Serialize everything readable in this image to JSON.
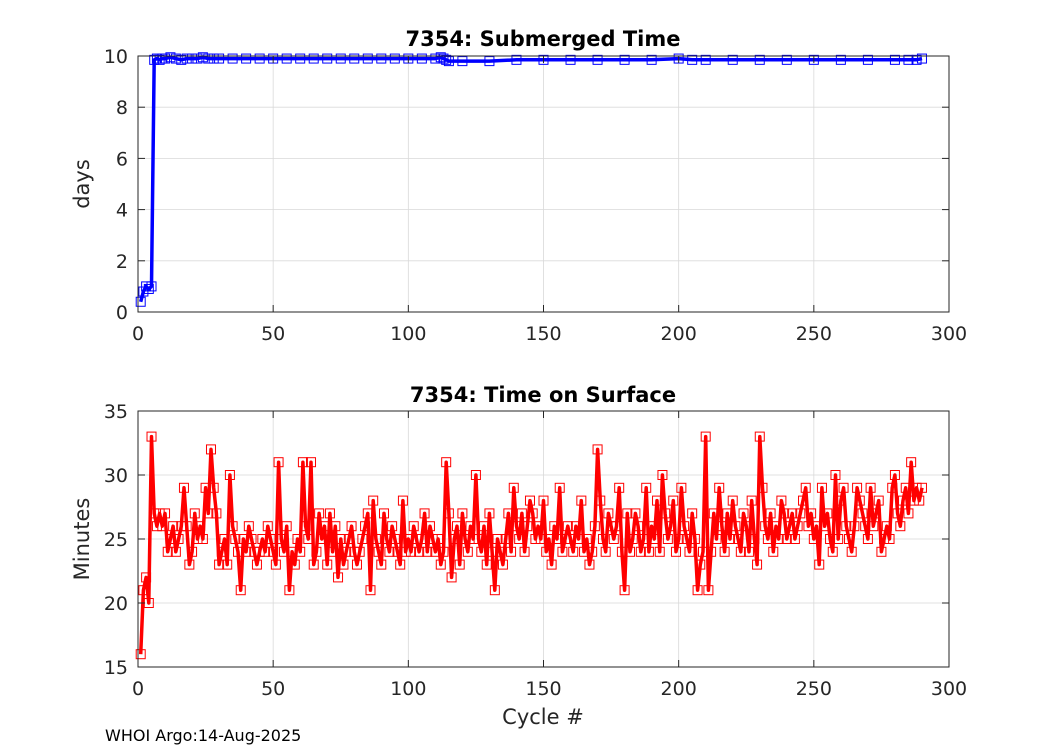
{
  "footer": "WHOI Argo:14-Aug-2025",
  "chart_data": [
    {
      "type": "line",
      "title": "7354: Submerged Time",
      "xlabel": "",
      "ylabel": "days",
      "xlim": [
        0,
        300
      ],
      "ylim": [
        0,
        10
      ],
      "xticks": [
        0,
        50,
        100,
        150,
        200,
        250,
        300
      ],
      "yticks": [
        0,
        2,
        4,
        6,
        8,
        10
      ],
      "grid": true,
      "marker": "square",
      "color": "#0000ff",
      "series": [
        {
          "name": "Submerged Time",
          "x": [
            1,
            2,
            3,
            4,
            5,
            6,
            7,
            8,
            9,
            10,
            12,
            14,
            16,
            18,
            20,
            22,
            24,
            26,
            28,
            30,
            35,
            40,
            45,
            50,
            55,
            60,
            65,
            70,
            75,
            80,
            85,
            90,
            95,
            100,
            105,
            110,
            112,
            113,
            114,
            115,
            120,
            130,
            140,
            150,
            160,
            170,
            180,
            190,
            200,
            205,
            210,
            220,
            230,
            240,
            250,
            260,
            270,
            280,
            285,
            288,
            290
          ],
          "values": [
            0.4,
            0.8,
            1.0,
            0.9,
            1.0,
            9.85,
            9.9,
            9.85,
            9.9,
            9.9,
            9.95,
            9.9,
            9.85,
            9.9,
            9.9,
            9.9,
            9.95,
            9.9,
            9.9,
            9.9,
            9.9,
            9.9,
            9.9,
            9.9,
            9.9,
            9.9,
            9.9,
            9.9,
            9.9,
            9.9,
            9.9,
            9.9,
            9.9,
            9.9,
            9.9,
            9.9,
            9.95,
            9.9,
            9.85,
            9.8,
            9.8,
            9.8,
            9.85,
            9.85,
            9.85,
            9.85,
            9.85,
            9.85,
            9.9,
            9.85,
            9.85,
            9.85,
            9.85,
            9.85,
            9.85,
            9.85,
            9.85,
            9.85,
            9.85,
            9.85,
            9.9
          ]
        }
      ]
    },
    {
      "type": "line",
      "title": "7354: Time on Surface",
      "xlabel": "Cycle #",
      "ylabel": "Minutes",
      "xlim": [
        0,
        300
      ],
      "ylim": [
        15,
        35
      ],
      "xticks": [
        0,
        50,
        100,
        150,
        200,
        250,
        300
      ],
      "yticks": [
        15,
        20,
        25,
        30,
        35
      ],
      "grid": true,
      "marker": "square",
      "color": "#ff0000",
      "series": [
        {
          "name": "Time on Surface",
          "x": [
            1,
            2,
            3,
            4,
            5,
            6,
            7,
            8,
            9,
            10,
            11,
            12,
            13,
            14,
            15,
            16,
            17,
            18,
            19,
            20,
            21,
            22,
            23,
            24,
            25,
            26,
            27,
            28,
            29,
            30,
            31,
            32,
            33,
            34,
            35,
            36,
            37,
            38,
            39,
            40,
            41,
            42,
            43,
            44,
            45,
            46,
            47,
            48,
            49,
            50,
            51,
            52,
            53,
            54,
            55,
            56,
            57,
            58,
            59,
            60,
            61,
            62,
            63,
            64,
            65,
            66,
            67,
            68,
            69,
            70,
            71,
            72,
            73,
            74,
            75,
            76,
            77,
            78,
            79,
            80,
            81,
            82,
            83,
            84,
            85,
            86,
            87,
            88,
            89,
            90,
            91,
            92,
            93,
            94,
            95,
            96,
            97,
            98,
            99,
            100,
            101,
            102,
            103,
            104,
            105,
            106,
            107,
            108,
            109,
            110,
            111,
            112,
            113,
            114,
            115,
            116,
            117,
            118,
            119,
            120,
            121,
            122,
            123,
            124,
            125,
            126,
            127,
            128,
            129,
            130,
            131,
            132,
            133,
            134,
            135,
            136,
            137,
            138,
            139,
            140,
            141,
            142,
            143,
            144,
            145,
            146,
            147,
            148,
            149,
            150,
            151,
            152,
            153,
            154,
            155,
            156,
            157,
            158,
            159,
            160,
            161,
            162,
            163,
            164,
            165,
            166,
            167,
            168,
            169,
            170,
            171,
            172,
            173,
            174,
            175,
            176,
            177,
            178,
            179,
            180,
            181,
            182,
            183,
            184,
            185,
            186,
            187,
            188,
            189,
            190,
            191,
            192,
            193,
            194,
            195,
            196,
            197,
            198,
            199,
            200,
            201,
            202,
            203,
            204,
            205,
            206,
            207,
            208,
            209,
            210,
            211,
            212,
            213,
            214,
            215,
            216,
            217,
            218,
            219,
            220,
            221,
            222,
            223,
            224,
            225,
            226,
            227,
            228,
            229,
            230,
            231,
            232,
            233,
            234,
            235,
            236,
            237,
            238,
            239,
            240,
            241,
            242,
            243,
            244,
            245,
            246,
            247,
            248,
            249,
            250,
            251,
            252,
            253,
            254,
            255,
            256,
            257,
            258,
            259,
            260,
            261,
            262,
            263,
            264,
            265,
            266,
            267,
            268,
            269,
            270,
            271,
            272,
            273,
            274,
            275,
            276,
            277,
            278,
            279,
            280,
            281,
            282,
            283,
            284,
            285,
            286,
            287,
            288,
            289,
            290
          ],
          "values": [
            16,
            21,
            22,
            20,
            33,
            27,
            26,
            27,
            26,
            27,
            24,
            25,
            26,
            24,
            25,
            26,
            29,
            26,
            23,
            24,
            27,
            25,
            26,
            25,
            29,
            27,
            32,
            29,
            27,
            23,
            24,
            25,
            23,
            30,
            26,
            25,
            24,
            21,
            25,
            24,
            26,
            25,
            24,
            23,
            24,
            25,
            24,
            26,
            25,
            24,
            23,
            31,
            25,
            24,
            26,
            21,
            24,
            23,
            25,
            24,
            31,
            26,
            25,
            31,
            23,
            24,
            27,
            25,
            26,
            23,
            27,
            24,
            26,
            22,
            25,
            23,
            24,
            25,
            26,
            24,
            23,
            24,
            25,
            26,
            27,
            21,
            28,
            25,
            24,
            23,
            27,
            25,
            24,
            26,
            25,
            24,
            23,
            28,
            24,
            25,
            24,
            26,
            25,
            24,
            25,
            27,
            24,
            26,
            25,
            24,
            25,
            23,
            24,
            31,
            27,
            22,
            25,
            26,
            23,
            27,
            25,
            24,
            26,
            25,
            30,
            25,
            24,
            26,
            23,
            27,
            24,
            21,
            25,
            24,
            23,
            25,
            27,
            24,
            29,
            26,
            25,
            27,
            24,
            26,
            28,
            27,
            25,
            26,
            25,
            28,
            24,
            25,
            23,
            26,
            25,
            29,
            24,
            25,
            26,
            25,
            24,
            26,
            25,
            28,
            24,
            25,
            23,
            24,
            26,
            32,
            28,
            25,
            24,
            27,
            26,
            25,
            26,
            29,
            24,
            21,
            27,
            24,
            25,
            27,
            26,
            24,
            25,
            29,
            24,
            26,
            25,
            28,
            24,
            30,
            27,
            25,
            26,
            28,
            24,
            25,
            29,
            26,
            25,
            24,
            27,
            25,
            21,
            23,
            24,
            33,
            21,
            24,
            27,
            25,
            29,
            26,
            24,
            27,
            25,
            28,
            26,
            25,
            24,
            27,
            26,
            24,
            28,
            25,
            23,
            33,
            29,
            26,
            25,
            27,
            24,
            26,
            25,
            28,
            27,
            25,
            26,
            27,
            25,
            26,
            27,
            28,
            29,
            26,
            27,
            25,
            26,
            23,
            29,
            26,
            27,
            25,
            24,
            30,
            25,
            28,
            29,
            26,
            25,
            24,
            26,
            29,
            28,
            27,
            26,
            25,
            29,
            26,
            27,
            28,
            24,
            25,
            26,
            25,
            29,
            30,
            27,
            26,
            28,
            29,
            27,
            31,
            28,
            29,
            28,
            29
          ]
        }
      ]
    }
  ]
}
